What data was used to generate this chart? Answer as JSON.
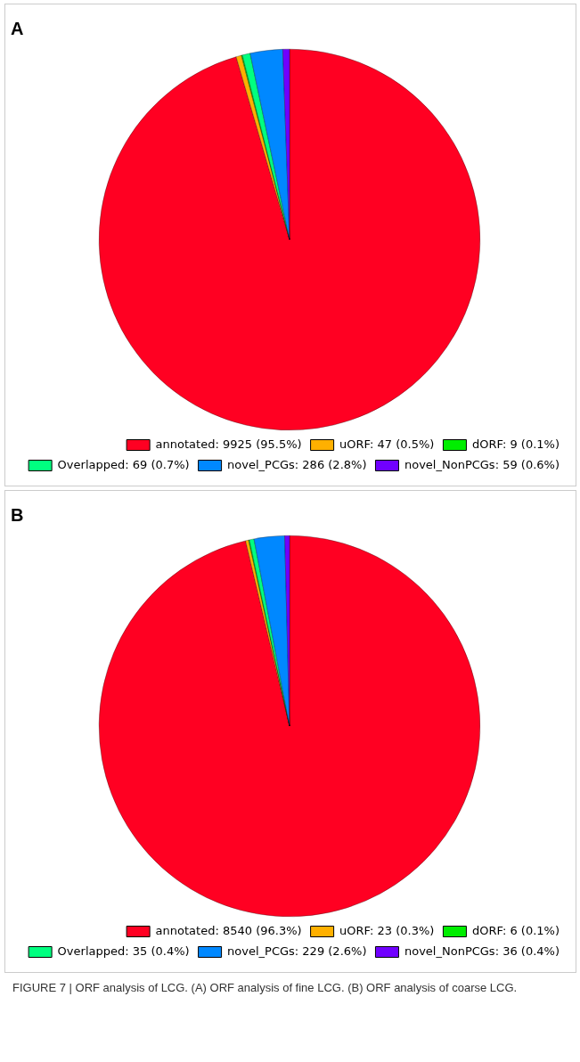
{
  "chart_data": [
    {
      "type": "pie",
      "title": "A",
      "legend": "bottom right",
      "categories": [
        "annotated",
        "uORF",
        "dORF",
        "Overlapped",
        "novel_PCGs",
        "novel_NonPCGs"
      ],
      "values": [
        9925,
        47,
        9,
        69,
        286,
        59
      ],
      "value_labels": [
        "9925 (95.5%)",
        "47 (0.5%)",
        "9 (0.1%)",
        "69 (0.7%)",
        "286 (2.8%)",
        "59 (0.6%)"
      ],
      "colors": [
        "#ff0022",
        "#ffb000",
        "#00ee00",
        "#00ff80",
        "#0088ff",
        "#7000ff"
      ]
    },
    {
      "type": "pie",
      "title": "B",
      "legend": "bottom right",
      "categories": [
        "annotated",
        "uORF",
        "dORF",
        "Overlapped",
        "novel_PCGs",
        "novel_NonPCGs"
      ],
      "values": [
        8540,
        23,
        6,
        35,
        229,
        36
      ],
      "value_labels": [
        "8540 (96.3%)",
        "23 (0.3%)",
        "6 (0.1%)",
        "35 (0.4%)",
        "229 (2.6%)",
        "36 (0.4%)"
      ],
      "colors": [
        "#ff0022",
        "#ffb000",
        "#00ee00",
        "#00ff80",
        "#0088ff",
        "#7000ff"
      ],
      "annotations": [
        "FIGURE 7 | ORF analysis of LCG. (A) ORF analysis of fine LCG. (B) ORF analysis of coarse LCG."
      ]
    }
  ]
}
